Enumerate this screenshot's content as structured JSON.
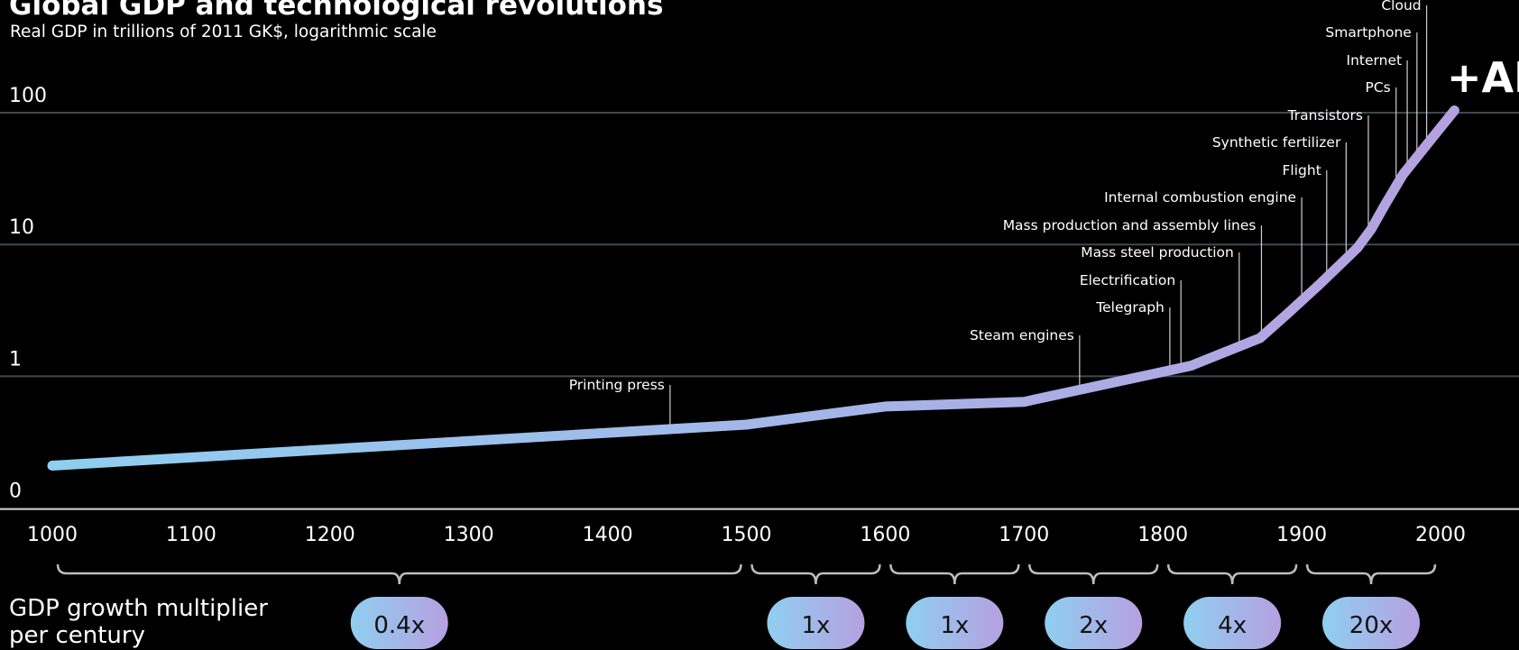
{
  "header": {
    "title": "Global GDP and technological revolutions",
    "subtitle": "Real GDP in trillions of 2011 GK$, logarithmic scale"
  },
  "colors": {
    "background": "#000000",
    "gridline": "#3b4a52",
    "line_start": "#8fcff0",
    "line_end": "#b6a0e0"
  },
  "chart_data": {
    "type": "line",
    "title": "Global GDP and technological revolutions",
    "subtitle": "Real GDP in trillions of 2011 GK$, logarithmic scale",
    "xlabel": "",
    "ylabel": "",
    "y_scale": "log",
    "xlim": [
      1000,
      2000
    ],
    "x_ticks": [
      1000,
      1100,
      1200,
      1300,
      1400,
      1500,
      1600,
      1700,
      1800,
      1900,
      2000
    ],
    "y_ticks": [
      {
        "label": "100",
        "value": 100
      },
      {
        "label": "10",
        "value": 10
      },
      {
        "label": "1",
        "value": 1
      },
      {
        "label": "0",
        "value": 0.1
      }
    ],
    "grid": true,
    "series": [
      {
        "x": [
          1000,
          1500,
          1600,
          1700,
          1820,
          1870,
          1890,
          1913,
          1940,
          1950,
          1960,
          1973,
          1980,
          1990,
          2000,
          2010
        ],
        "y": [
          0.21,
          0.43,
          0.59,
          0.64,
          1.2,
          1.95,
          3.0,
          5.0,
          9.4,
          13.0,
          20.0,
          34.0,
          42.0,
          57.0,
          77.0,
          104.0
        ]
      }
    ],
    "annotations": [
      {
        "label": "Printing press",
        "x": 1445
      },
      {
        "label": "Steam engines",
        "x": 1740
      },
      {
        "label": "Telegraph",
        "x": 1805
      },
      {
        "label": "Electrification",
        "x": 1813
      },
      {
        "label": "Mass steel production",
        "x": 1855
      },
      {
        "label": "Mass production and assembly lines",
        "x": 1871
      },
      {
        "label": "Internal combustion engine",
        "x": 1900
      },
      {
        "label": "Flight",
        "x": 1918
      },
      {
        "label": "Synthetic fertilizer",
        "x": 1932
      },
      {
        "label": "Transistors",
        "x": 1948
      },
      {
        "label": "PCs",
        "x": 1968
      },
      {
        "label": "Internet",
        "x": 1976
      },
      {
        "label": "Smartphone",
        "x": 1983
      },
      {
        "label": "Cloud",
        "x": 1990
      }
    ],
    "ai_label": "+AI",
    "multiplier": {
      "label_line1": "GDP growth multiplier",
      "label_line2": "per century",
      "periods": [
        {
          "label": "0.4x",
          "start": 1000,
          "end": 1500
        },
        {
          "label": "1x",
          "start": 1500,
          "end": 1600
        },
        {
          "label": "1x",
          "start": 1600,
          "end": 1700
        },
        {
          "label": "2x",
          "start": 1700,
          "end": 1800
        },
        {
          "label": "4x",
          "start": 1800,
          "end": 1900
        },
        {
          "label": "20x",
          "start": 1900,
          "end": 2000
        }
      ]
    }
  }
}
